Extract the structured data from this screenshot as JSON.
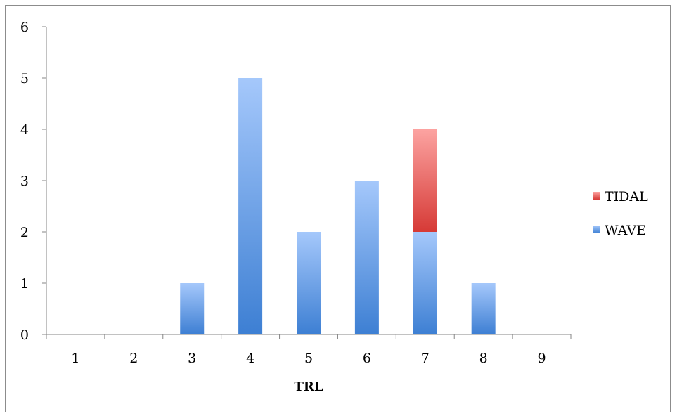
{
  "chart_data": {
    "type": "bar",
    "stacked": true,
    "title": "",
    "xlabel": "TRL",
    "ylabel": "",
    "categories": [
      "1",
      "2",
      "3",
      "4",
      "5",
      "6",
      "7",
      "8",
      "9"
    ],
    "series": [
      {
        "name": "WAVE",
        "values": [
          0,
          0,
          1,
          5,
          2,
          3,
          2,
          1,
          0
        ],
        "color_light": "#a5c8fb",
        "color_dark": "#3d7fd3"
      },
      {
        "name": "TIDAL",
        "values": [
          0,
          0,
          0,
          0,
          0,
          0,
          2,
          0,
          0
        ],
        "color_light": "#fca3a1",
        "color_dark": "#d63a36"
      }
    ],
    "ylim": [
      0,
      6
    ],
    "yticks": [
      "0",
      "1",
      "2",
      "3",
      "4",
      "5",
      "6"
    ],
    "grid": false,
    "legend": {
      "position": "right",
      "entries": [
        "TIDAL",
        "WAVE"
      ]
    }
  }
}
